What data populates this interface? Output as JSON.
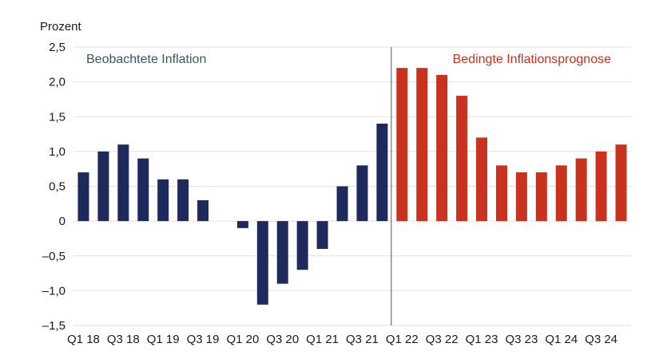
{
  "chart_data": {
    "type": "bar",
    "ylabel": "Prozent",
    "ylim": [
      -1.5,
      2.5
    ],
    "yticks": [
      "2,5",
      "2,0",
      "1,5",
      "1,0",
      "0,5",
      "0",
      "–0,5",
      "–1,0",
      "–1,5"
    ],
    "ytick_values": [
      2.5,
      2.0,
      1.5,
      1.0,
      0.5,
      0,
      -0.5,
      -1.0,
      -1.5
    ],
    "grid": true,
    "categories": [
      "Q1 18",
      "Q2 18",
      "Q3 18",
      "Q4 18",
      "Q1 19",
      "Q2 19",
      "Q3 19",
      "Q4 19",
      "Q1 20",
      "Q2 20",
      "Q3 20",
      "Q4 20",
      "Q1 21",
      "Q2 21",
      "Q3 21",
      "Q4 21",
      "Q1 22",
      "Q2 22",
      "Q3 22",
      "Q4 22",
      "Q1 23",
      "Q2 23",
      "Q3 23",
      "Q4 23",
      "Q1 24",
      "Q2 24",
      "Q3 24",
      "Q4 24"
    ],
    "xtick_labels": [
      "Q1 18",
      "Q3 18",
      "Q1 19",
      "Q3 19",
      "Q1 20",
      "Q3 20",
      "Q1 21",
      "Q3 21",
      "Q1 22",
      "Q3 22",
      "Q1 23",
      "Q3 23",
      "Q1 24",
      "Q3 24"
    ],
    "series": [
      {
        "name": "Beobachtete Inflation",
        "color": "#1f2a5c",
        "values": [
          0.7,
          1.0,
          1.1,
          0.9,
          0.6,
          0.6,
          0.3,
          null,
          -0.1,
          -1.2,
          -0.9,
          -0.7,
          -0.4,
          0.5,
          0.8,
          1.4,
          null,
          null,
          null,
          null,
          null,
          null,
          null,
          null,
          null,
          null,
          null,
          null
        ]
      },
      {
        "name": "Bedingte Inflationsprognose",
        "color": "#c8321e",
        "values": [
          null,
          null,
          null,
          null,
          null,
          null,
          null,
          null,
          null,
          null,
          null,
          null,
          null,
          null,
          null,
          null,
          2.2,
          2.2,
          2.1,
          1.8,
          1.2,
          0.8,
          0.7,
          0.7,
          0.8,
          0.9,
          1.0,
          1.1
        ]
      }
    ],
    "annotations": {
      "observed_label": "Beobachtete Inflation",
      "forecast_label": "Bedingte Inflationsprognose",
      "observed_color": "#3d5560",
      "forecast_color": "#c8321e"
    }
  }
}
